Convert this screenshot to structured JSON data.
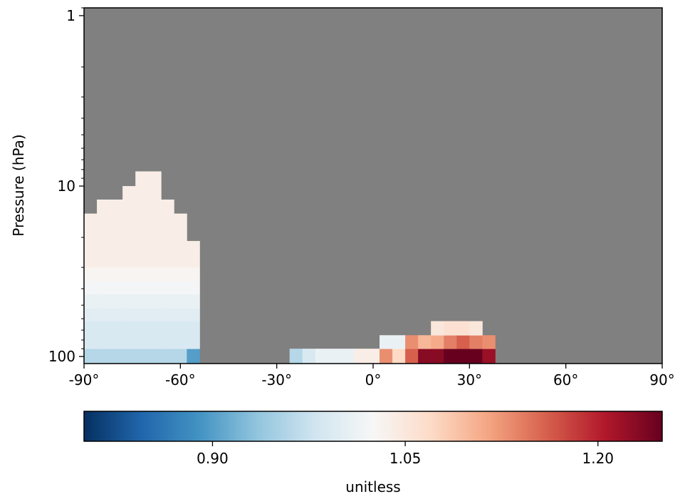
{
  "chart_data": {
    "type": "heatmap",
    "title": "",
    "xlabel": "",
    "ylabel": "Pressure (hPa)",
    "x_ticks": [
      "-90°",
      "-60°",
      "-30°",
      "0°",
      "30°",
      "60°",
      "90°"
    ],
    "x_tick_values": [
      -90,
      -60,
      -30,
      0,
      30,
      60,
      90
    ],
    "xlim": [
      -90,
      90
    ],
    "y_ticks": [
      "1",
      "10",
      "100"
    ],
    "y_tick_values": [
      1,
      10,
      100
    ],
    "ylim": [
      110,
      0.9
    ],
    "y_scale": "log",
    "missing_color": "#808080",
    "colorbar": {
      "label": "unitless",
      "range": [
        0.8,
        1.25
      ],
      "ticks": [
        "0.90",
        "1.05",
        "1.20"
      ],
      "tick_values": [
        0.9,
        1.05,
        1.2
      ],
      "colormap": "RdBu_r",
      "stops": [
        "#053061",
        "#2166ac",
        "#4393c3",
        "#92c5de",
        "#d1e5f0",
        "#f7f7f7",
        "#fddbc7",
        "#f4a582",
        "#d6604d",
        "#b2182b",
        "#67001f"
      ]
    },
    "lat_edges": [
      -90,
      -86,
      -82,
      -78,
      -74,
      -70,
      -66,
      -62,
      -58,
      -54,
      -50,
      -46,
      -42,
      -38,
      -34,
      -30,
      -26,
      -22,
      -18,
      -14,
      -10,
      -6,
      -2,
      2,
      6,
      10,
      14,
      18,
      22,
      26,
      30,
      34,
      38
    ],
    "pressure_edges": [
      110,
      90,
      75,
      62,
      52,
      43,
      36,
      30,
      25,
      21,
      17.5,
      14.5,
      12,
      10,
      8.2
    ],
    "cell_value_grid": [
      [
        0.96,
        0.96,
        0.96,
        0.96,
        0.96,
        0.96,
        0.96,
        0.96,
        0.9,
        null,
        null,
        null,
        null,
        null,
        null,
        null,
        0.96,
        0.99,
        1.01,
        1.01,
        1.01,
        1.04,
        1.04,
        1.13,
        1.07,
        1.16,
        1.23,
        1.23,
        1.26,
        1.26,
        1.25,
        1.22
      ],
      [
        0.99,
        0.99,
        0.99,
        0.99,
        0.99,
        0.99,
        0.99,
        0.99,
        0.99,
        null,
        null,
        null,
        null,
        null,
        null,
        null,
        null,
        null,
        null,
        null,
        null,
        null,
        null,
        1.01,
        1.01,
        1.13,
        1.1,
        1.11,
        1.14,
        1.16,
        1.14,
        1.13
      ],
      [
        0.99,
        0.99,
        0.99,
        0.99,
        0.99,
        0.99,
        0.99,
        0.99,
        0.99,
        null,
        null,
        null,
        null,
        null,
        null,
        null,
        null,
        null,
        null,
        null,
        null,
        null,
        null,
        null,
        null,
        null,
        null,
        1.05,
        1.06,
        1.06,
        1.05,
        null
      ],
      [
        1.0,
        1.0,
        1.0,
        1.0,
        1.0,
        1.0,
        1.0,
        1.0,
        1.0,
        null,
        null,
        null,
        null,
        null,
        null,
        null,
        null,
        null,
        null,
        null,
        null,
        null,
        null,
        null,
        null,
        null,
        null,
        null,
        null,
        null,
        null,
        null
      ],
      [
        1.01,
        1.01,
        1.01,
        1.01,
        1.01,
        1.01,
        1.01,
        1.01,
        1.01,
        null,
        null,
        null,
        null,
        null,
        null,
        null,
        null,
        null,
        null,
        null,
        null,
        null,
        null,
        null,
        null,
        null,
        null,
        null,
        null,
        null,
        null,
        null
      ],
      [
        1.02,
        1.02,
        1.02,
        1.02,
        1.02,
        1.02,
        1.02,
        1.02,
        1.02,
        null,
        null,
        null,
        null,
        null,
        null,
        null,
        null,
        null,
        null,
        null,
        null,
        null,
        null,
        null,
        null,
        null,
        null,
        null,
        null,
        null,
        null,
        null
      ],
      [
        1.03,
        1.03,
        1.03,
        1.03,
        1.03,
        1.03,
        1.03,
        1.03,
        1.03,
        null,
        null,
        null,
        null,
        null,
        null,
        null,
        null,
        null,
        null,
        null,
        null,
        null,
        null,
        null,
        null,
        null,
        null,
        null,
        null,
        null,
        null,
        null
      ],
      [
        1.04,
        1.04,
        1.04,
        1.04,
        1.04,
        1.04,
        1.04,
        1.04,
        1.04,
        null,
        null,
        null,
        null,
        null,
        null,
        null,
        null,
        null,
        null,
        null,
        null,
        null,
        null,
        null,
        null,
        null,
        null,
        null,
        null,
        null,
        null,
        null
      ],
      [
        1.04,
        1.04,
        1.04,
        1.04,
        1.04,
        1.04,
        1.04,
        1.04,
        1.04,
        null,
        null,
        null,
        null,
        null,
        null,
        null,
        null,
        null,
        null,
        null,
        null,
        null,
        null,
        null,
        null,
        null,
        null,
        null,
        null,
        null,
        null,
        null
      ],
      [
        1.04,
        1.04,
        1.04,
        1.04,
        1.04,
        1.04,
        1.04,
        1.04,
        null,
        null,
        null,
        null,
        null,
        null,
        null,
        null,
        null,
        null,
        null,
        null,
        null,
        null,
        null,
        null,
        null,
        null,
        null,
        null,
        null,
        null,
        null,
        null
      ],
      [
        1.04,
        1.04,
        1.04,
        1.04,
        1.04,
        1.04,
        1.04,
        1.04,
        null,
        null,
        null,
        null,
        null,
        null,
        null,
        null,
        null,
        null,
        null,
        null,
        null,
        null,
        null,
        null,
        null,
        null,
        null,
        null,
        null,
        null,
        null,
        null
      ],
      [
        null,
        1.04,
        1.04,
        1.04,
        1.04,
        1.04,
        1.04,
        null,
        null,
        null,
        null,
        null,
        null,
        null,
        null,
        null,
        null,
        null,
        null,
        null,
        null,
        null,
        null,
        null,
        null,
        null,
        null,
        null,
        null,
        null,
        null,
        null
      ],
      [
        null,
        null,
        null,
        1.04,
        1.04,
        1.04,
        null,
        null,
        null,
        null,
        null,
        null,
        null,
        null,
        null,
        null,
        null,
        null,
        null,
        null,
        null,
        null,
        null,
        null,
        null,
        null,
        null,
        null,
        null,
        null,
        null,
        null
      ],
      [
        null,
        null,
        null,
        null,
        1.04,
        1.04,
        null,
        null,
        null,
        null,
        null,
        null,
        null,
        null,
        null,
        null,
        null,
        null,
        null,
        null,
        null,
        null,
        null,
        null,
        null,
        null,
        null,
        null,
        null,
        null,
        null,
        null
      ]
    ]
  }
}
